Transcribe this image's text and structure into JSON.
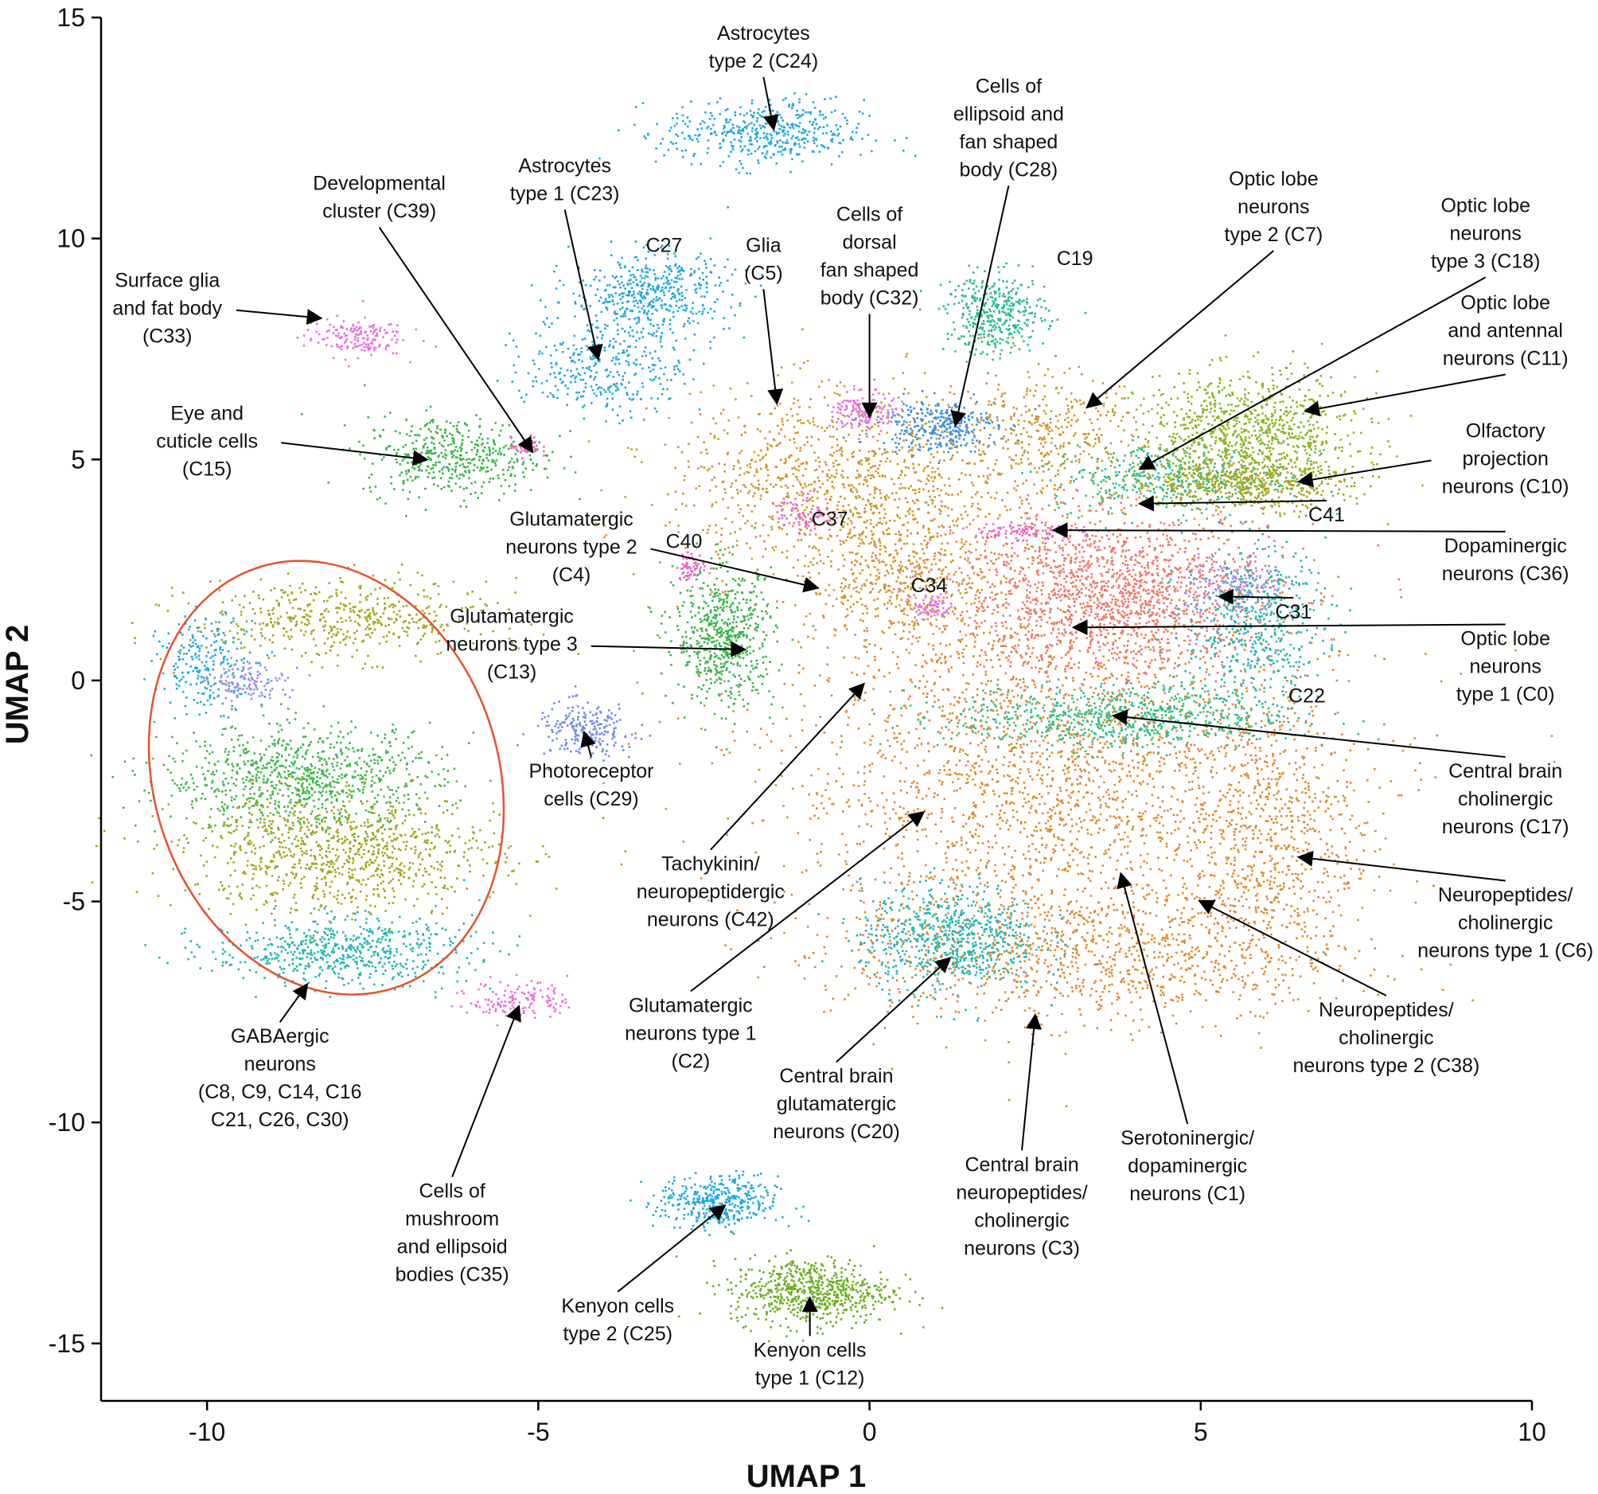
{
  "chart_data": {
    "type": "scatter",
    "xlabel": "UMAP 1",
    "ylabel": "UMAP 2",
    "xlim": [
      -11.6,
      10
    ],
    "ylim": [
      -16.3,
      15
    ],
    "xticks": [
      -10,
      -5,
      0,
      5,
      10
    ],
    "xtick_labels": [
      "-10",
      "-5",
      "0",
      "5",
      "10"
    ],
    "yticks": [
      15,
      10,
      5,
      0,
      -5,
      -10,
      -15
    ],
    "ytick_labels": [
      "15",
      "10",
      "5",
      "0",
      "-5",
      "-10",
      "-15"
    ],
    "colors": {
      "orange": "#e0892a",
      "gold": "#d1962a",
      "salmon": "#f2756c",
      "teal": "#22b7b0",
      "green": "#3ab54a",
      "lime": "#6aae1e",
      "olive": "#a5a51c",
      "yellowgreen": "#8bb51e",
      "skyblue": "#22a8de",
      "blue": "#3b8fe0",
      "lavender": "#9b8de8",
      "periwinkle": "#6f8cf0",
      "magenta": "#e96fe0",
      "pink": "#f062c4",
      "seagreen": "#2cbf88",
      "gabagreen": "#3fb94a",
      "ellipse": "#e6522c"
    },
    "clusters": [
      {
        "id": "c-main-orange",
        "color": "orange",
        "cx": 2.8,
        "cy": -2.0,
        "sx": 2.8,
        "sy": 3.0,
        "n": 2600
      },
      {
        "id": "c-main-orange-low",
        "color": "orange",
        "cx": 3.4,
        "cy": -6.2,
        "sx": 2.5,
        "sy": 1.0,
        "n": 900
      },
      {
        "id": "c-right-orange",
        "color": "orange",
        "cx": 6.0,
        "cy": -3.5,
        "sx": 0.9,
        "sy": 2.0,
        "n": 600
      },
      {
        "id": "c-upper-gold",
        "color": "gold",
        "cx": -0.5,
        "cy": 4.5,
        "sx": 1.7,
        "sy": 1.4,
        "n": 1000
      },
      {
        "id": "c-upper-gold2",
        "color": "gold",
        "cx": 0.6,
        "cy": 2.3,
        "sx": 1.0,
        "sy": 1.0,
        "n": 500
      },
      {
        "id": "c-gold-top",
        "color": "gold",
        "cx": 2.6,
        "cy": 5.5,
        "sx": 1.0,
        "sy": 1.0,
        "n": 400
      },
      {
        "id": "c-salmon",
        "color": "salmon",
        "cx": 3.7,
        "cy": 2.0,
        "sx": 1.6,
        "sy": 1.2,
        "n": 1500
      },
      {
        "id": "c-teal-right",
        "color": "teal",
        "cx": 5.8,
        "cy": 1.3,
        "sx": 0.7,
        "sy": 1.2,
        "n": 500
      },
      {
        "id": "c-seagreen-mid",
        "color": "seagreen",
        "cx": 3.8,
        "cy": -0.8,
        "sx": 1.7,
        "sy": 0.5,
        "n": 700
      },
      {
        "id": "c-seagreen-upper",
        "color": "seagreen",
        "cx": 4.5,
        "cy": 4.6,
        "sx": 1.2,
        "sy": 0.5,
        "n": 400
      },
      {
        "id": "c-teal-bottom",
        "color": "teal",
        "cx": 1.2,
        "cy": -5.8,
        "sx": 0.9,
        "sy": 0.8,
        "n": 700
      },
      {
        "id": "c-lime-tri",
        "color": "yellowgreen",
        "cx": 5.7,
        "cy": 5.6,
        "sx": 1.1,
        "sy": 0.9,
        "n": 900
      },
      {
        "id": "c-olive-low",
        "color": "olive",
        "cx": 5.6,
        "cy": 4.5,
        "sx": 1.1,
        "sy": 0.4,
        "n": 500
      },
      {
        "id": "c-green-left",
        "color": "green",
        "cx": -2.2,
        "cy": 1.0,
        "sx": 0.5,
        "sy": 1.0,
        "n": 600
      },
      {
        "id": "c-c19",
        "color": "seagreen",
        "cx": 1.9,
        "cy": 8.3,
        "sx": 0.5,
        "sy": 0.6,
        "n": 400
      },
      {
        "id": "c-blue-c28",
        "color": "blue",
        "cx": 1.0,
        "cy": 5.8,
        "sx": 0.6,
        "sy": 0.4,
        "n": 300
      },
      {
        "id": "c-magenta-c32",
        "color": "magenta",
        "cx": -0.1,
        "cy": 6.1,
        "sx": 0.3,
        "sy": 0.3,
        "n": 150
      },
      {
        "id": "c-sky-c27",
        "color": "skyblue",
        "cx": -3.3,
        "cy": 8.8,
        "sx": 0.8,
        "sy": 0.6,
        "n": 450
      },
      {
        "id": "c-sky-c23",
        "color": "skyblue",
        "cx": -4.0,
        "cy": 7.2,
        "sx": 0.8,
        "sy": 0.8,
        "n": 350
      },
      {
        "id": "c-sky-c24",
        "color": "skyblue",
        "cx": -1.6,
        "cy": 12.4,
        "sx": 1.0,
        "sy": 0.5,
        "n": 450
      },
      {
        "id": "c-green-c15",
        "color": "green",
        "cx": -6.3,
        "cy": 5.1,
        "sx": 0.9,
        "sy": 0.6,
        "n": 450
      },
      {
        "id": "c-magenta-c33",
        "color": "magenta",
        "cx": -7.8,
        "cy": 7.8,
        "sx": 0.5,
        "sy": 0.3,
        "n": 160
      },
      {
        "id": "c-pink-c39",
        "color": "pink",
        "cx": -5.2,
        "cy": 5.3,
        "sx": 0.15,
        "sy": 0.15,
        "n": 50
      },
      {
        "id": "c-pink-c37",
        "color": "pink",
        "cx": -1.0,
        "cy": 3.8,
        "sx": 0.3,
        "sy": 0.3,
        "n": 80
      },
      {
        "id": "c-pink-c40",
        "color": "pink",
        "cx": -2.7,
        "cy": 2.6,
        "sx": 0.15,
        "sy": 0.2,
        "n": 60
      },
      {
        "id": "c-pink-c34",
        "color": "magenta",
        "cx": 0.9,
        "cy": 1.7,
        "sx": 0.2,
        "sy": 0.2,
        "n": 70
      },
      {
        "id": "c-pink-c36",
        "color": "pink",
        "cx": 2.3,
        "cy": 3.4,
        "sx": 0.5,
        "sy": 0.15,
        "n": 90
      },
      {
        "id": "c-lav-c31",
        "color": "lavender",
        "cx": 5.5,
        "cy": 2.1,
        "sx": 0.5,
        "sy": 0.5,
        "n": 160
      },
      {
        "id": "c-peri-c29",
        "color": "periwinkle",
        "cx": -4.3,
        "cy": -1.1,
        "sx": 0.5,
        "sy": 0.4,
        "n": 220
      },
      {
        "id": "c-gaba-olive-top",
        "color": "olive",
        "cx": -8.0,
        "cy": 1.4,
        "sx": 1.5,
        "sy": 0.6,
        "n": 500
      },
      {
        "id": "c-gaba-sky",
        "color": "skyblue",
        "cx": -10.0,
        "cy": 0.4,
        "sx": 0.5,
        "sy": 0.7,
        "n": 220
      },
      {
        "id": "c-gaba-lav",
        "color": "lavender",
        "cx": -9.4,
        "cy": 0.0,
        "sx": 0.4,
        "sy": 0.3,
        "n": 120
      },
      {
        "id": "c-gaba-green",
        "color": "gabagreen",
        "cx": -8.6,
        "cy": -2.2,
        "sx": 1.4,
        "sy": 0.8,
        "n": 900
      },
      {
        "id": "c-gaba-olive-low",
        "color": "olive",
        "cx": -8.0,
        "cy": -3.9,
        "sx": 1.6,
        "sy": 0.9,
        "n": 900
      },
      {
        "id": "c-gaba-teal",
        "color": "teal",
        "cx": -8.0,
        "cy": -6.1,
        "sx": 1.3,
        "sy": 0.5,
        "n": 600
      },
      {
        "id": "c-magenta-c35",
        "color": "magenta",
        "cx": -5.3,
        "cy": -7.2,
        "sx": 0.5,
        "sy": 0.3,
        "n": 140
      },
      {
        "id": "c-kc25",
        "color": "skyblue",
        "cx": -2.3,
        "cy": -11.8,
        "sx": 0.6,
        "sy": 0.4,
        "n": 400
      },
      {
        "id": "c-kc12",
        "color": "lime",
        "cx": -0.9,
        "cy": -13.8,
        "sx": 0.8,
        "sy": 0.5,
        "n": 650
      }
    ],
    "annotations": [
      {
        "id": "astro-t2",
        "lines": [
          "Astrocytes",
          "type 2 (C24)"
        ],
        "x": -1.6,
        "y": 14.5,
        "arrow": [
          -1.45,
          12.5
        ]
      },
      {
        "id": "astro-t1",
        "lines": [
          "Astrocytes",
          "type 1 (C23)"
        ],
        "x": -4.6,
        "y": 11.5,
        "arrow": [
          -4.1,
          7.3
        ]
      },
      {
        "id": "dev-cluster",
        "lines": [
          "Developmental",
          "cluster (C39)"
        ],
        "x": -7.4,
        "y": 11.1,
        "arrow": [
          -5.1,
          5.2
        ]
      },
      {
        "id": "surface-glia",
        "lines": [
          "Surface glia",
          "and fat body",
          "(C33)"
        ],
        "x": -10.6,
        "y": 8.9,
        "arrow": [
          -8.3,
          8.2
        ]
      },
      {
        "id": "eye-cuticle",
        "lines": [
          "Eye and",
          "cuticle cells",
          "(C15)"
        ],
        "x": -10.0,
        "y": 5.9,
        "arrow": [
          -6.7,
          5.0
        ]
      },
      {
        "id": "glia-c5",
        "lines": [
          "Glia",
          "(C5)"
        ],
        "x": -1.6,
        "y": 9.7,
        "arrow": [
          -1.4,
          6.3
        ]
      },
      {
        "id": "c27",
        "lines": [
          "C27"
        ],
        "x": -3.1,
        "y": 9.7,
        "arrow": null
      },
      {
        "id": "dorsal-fan",
        "lines": [
          "Cells of",
          "dorsal",
          "fan shaped",
          "body (C32)"
        ],
        "x": 0.0,
        "y": 10.4,
        "arrow": [
          0.0,
          6.0
        ]
      },
      {
        "id": "ellipsoid-fan",
        "lines": [
          "Cells of",
          "ellipsoid and",
          "fan shaped",
          "body (C28)"
        ],
        "x": 2.1,
        "y": 13.3,
        "arrow": [
          1.3,
          5.8
        ]
      },
      {
        "id": "c19",
        "lines": [
          "C19"
        ],
        "x": 3.1,
        "y": 9.4,
        "arrow": null
      },
      {
        "id": "optic-t2",
        "lines": [
          "Optic lobe",
          "neurons",
          "type 2 (C7)"
        ],
        "x": 6.1,
        "y": 11.2,
        "arrow": [
          3.3,
          6.2
        ]
      },
      {
        "id": "optic-t3",
        "lines": [
          "Optic lobe",
          "neurons",
          "type 3 (C18)"
        ],
        "x": 9.3,
        "y": 10.6,
        "arrow": [
          4.1,
          4.8
        ]
      },
      {
        "id": "optic-antennal",
        "lines": [
          "Optic lobe",
          "and antennal",
          "neurons (C11)"
        ],
        "x": 9.6,
        "y": 8.4,
        "arrow": [
          6.6,
          6.1
        ]
      },
      {
        "id": "olfactory",
        "lines": [
          "Olfactory",
          "projection",
          "neurons (C10)"
        ],
        "x": 9.6,
        "y": 5.5,
        "arrow": [
          6.5,
          4.5
        ]
      },
      {
        "id": "c41",
        "lines": [
          "C41"
        ],
        "x": 6.9,
        "y": 3.6,
        "arrow": [
          4.1,
          4.0
        ]
      },
      {
        "id": "dopaminergic",
        "lines": [
          "Dopaminergic",
          "neurons (C36)"
        ],
        "x": 9.6,
        "y": 2.9,
        "arrow": [
          2.8,
          3.4
        ]
      },
      {
        "id": "c31",
        "lines": [
          "C31"
        ],
        "x": 6.4,
        "y": 1.4,
        "arrow": [
          5.3,
          1.9
        ]
      },
      {
        "id": "optic-t1",
        "lines": [
          "Optic lobe",
          "neurons",
          "type 1 (C0)"
        ],
        "x": 9.6,
        "y": 0.8,
        "arrow": [
          3.1,
          1.2
        ]
      },
      {
        "id": "c22",
        "lines": [
          "C22"
        ],
        "x": 6.6,
        "y": -0.5,
        "arrow": null
      },
      {
        "id": "cb-cholinergic",
        "lines": [
          "Central brain",
          "cholinergic",
          "neurons (C17)"
        ],
        "x": 9.6,
        "y": -2.2,
        "arrow": [
          3.7,
          -0.8
        ]
      },
      {
        "id": "neuropep-t1",
        "lines": [
          "Neuropeptides/",
          "cholinergic",
          "neurons type 1 (C6)"
        ],
        "x": 9.6,
        "y": -5.0,
        "arrow": [
          6.5,
          -4.0
        ]
      },
      {
        "id": "neuropep-t2",
        "lines": [
          "Neuropeptides/",
          "cholinergic",
          "neurons type 2 (C38)"
        ],
        "x": 7.8,
        "y": -7.6,
        "arrow": [
          5.0,
          -5.0
        ]
      },
      {
        "id": "serotonergic",
        "lines": [
          "Serotoninergic/",
          "dopaminergic",
          "neurons (C1)"
        ],
        "x": 4.8,
        "y": -10.5,
        "arrow": [
          3.8,
          -4.4
        ]
      },
      {
        "id": "cb-neuropep",
        "lines": [
          "Central brain",
          "neuropeptides/",
          "cholinergic",
          "neurons (C3)"
        ],
        "x": 2.3,
        "y": -11.1,
        "arrow": [
          2.5,
          -7.6
        ]
      },
      {
        "id": "cb-glutamatergic",
        "lines": [
          "Central brain",
          "glutamatergic",
          "neurons (C20)"
        ],
        "x": -0.5,
        "y": -9.1,
        "arrow": [
          1.2,
          -6.3
        ]
      },
      {
        "id": "glut-t1",
        "lines": [
          "Glutamatergic",
          "neurons type 1",
          "(C2)"
        ],
        "x": -2.7,
        "y": -7.5,
        "arrow": [
          0.8,
          -3.0
        ]
      },
      {
        "id": "tachykinin",
        "lines": [
          "Tachykinin/",
          "neuropeptidergic",
          "neurons (C42)"
        ],
        "x": -2.4,
        "y": -4.3,
        "arrow": [
          -0.1,
          -0.1
        ]
      },
      {
        "id": "glut-t2",
        "lines": [
          "Glutamatergic",
          "neurons type 2",
          "(C4)"
        ],
        "x": -4.5,
        "y": 3.5,
        "arrow": [
          -0.8,
          2.1
        ]
      },
      {
        "id": "c37",
        "lines": [
          "C37"
        ],
        "x": -0.6,
        "y": 3.5,
        "arrow": null
      },
      {
        "id": "c40",
        "lines": [
          "C40"
        ],
        "x": -2.8,
        "y": 3.0,
        "arrow": null
      },
      {
        "id": "c34",
        "lines": [
          "C34"
        ],
        "x": 0.9,
        "y": 2.0,
        "arrow": null
      },
      {
        "id": "glut-t3",
        "lines": [
          "Glutamatergic",
          "neurons type 3",
          "(C13)"
        ],
        "x": -5.4,
        "y": 1.3,
        "arrow": [
          -1.9,
          0.7
        ]
      },
      {
        "id": "photoreceptor",
        "lines": [
          "Photoreceptor",
          "cells (C29)"
        ],
        "x": -4.2,
        "y": -2.2,
        "arrow": [
          -4.3,
          -1.2
        ]
      },
      {
        "id": "gabaergic",
        "lines": [
          "GABAergic",
          "neurons",
          "(C8, C9, C14, C16",
          "C21, C26, C30)"
        ],
        "x": -8.9,
        "y": -8.2,
        "arrow": [
          -8.5,
          -6.9
        ]
      },
      {
        "id": "mushroom",
        "lines": [
          "Cells of",
          "mushroom",
          "and ellipsoid",
          "bodies (C35)"
        ],
        "x": -6.3,
        "y": -11.7,
        "arrow": [
          -5.3,
          -7.4
        ]
      },
      {
        "id": "kc-t2",
        "lines": [
          "Kenyon cells",
          "type 2 (C25)"
        ],
        "x": -3.8,
        "y": -14.3,
        "arrow": [
          -2.2,
          -11.9
        ]
      },
      {
        "id": "kc-t1",
        "lines": [
          "Kenyon cells",
          "type 1 (C12)"
        ],
        "x": -0.9,
        "y": -15.3,
        "arrow": [
          -0.9,
          -14.0
        ]
      }
    ],
    "gaba_ellipse": {
      "cx": -8.2,
      "cy": -2.2,
      "rx": 2.6,
      "ry": 5.0,
      "rotate_deg": -18
    }
  }
}
